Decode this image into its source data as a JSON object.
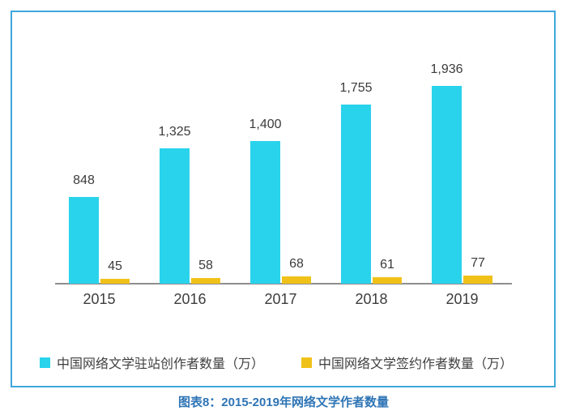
{
  "caption": "图表8：2015-2019年网络文学作者数量",
  "colors": {
    "series1": "#29d3ec",
    "series2": "#f0c219",
    "border": "#3fa7dc",
    "axis": "#8f8f8f",
    "value_text": "#3b3b3b",
    "caption_text": "#2e74b5"
  },
  "chart_data": {
    "type": "bar",
    "categories": [
      "2015",
      "2016",
      "2017",
      "2018",
      "2019"
    ],
    "series": [
      {
        "name": "中国网络文学驻站创作者数量（万）",
        "color": "#29d3ec",
        "values": [
          848,
          1325,
          1400,
          1755,
          1936
        ],
        "labels": [
          "848",
          "1,325",
          "1,400",
          "1,755",
          "1,936"
        ]
      },
      {
        "name": "中国网络文学签约作者数量（万）",
        "color": "#f0c219",
        "values": [
          45,
          58,
          68,
          61,
          77
        ],
        "labels": [
          "45",
          "58",
          "68",
          "61",
          "77"
        ]
      }
    ],
    "title": "图表8：2015-2019年网络文学作者数量",
    "xlabel": "",
    "ylabel": "",
    "ylim": [
      0,
      2100
    ],
    "grid": false,
    "legend_position": "bottom",
    "value_labels_shown": true
  }
}
